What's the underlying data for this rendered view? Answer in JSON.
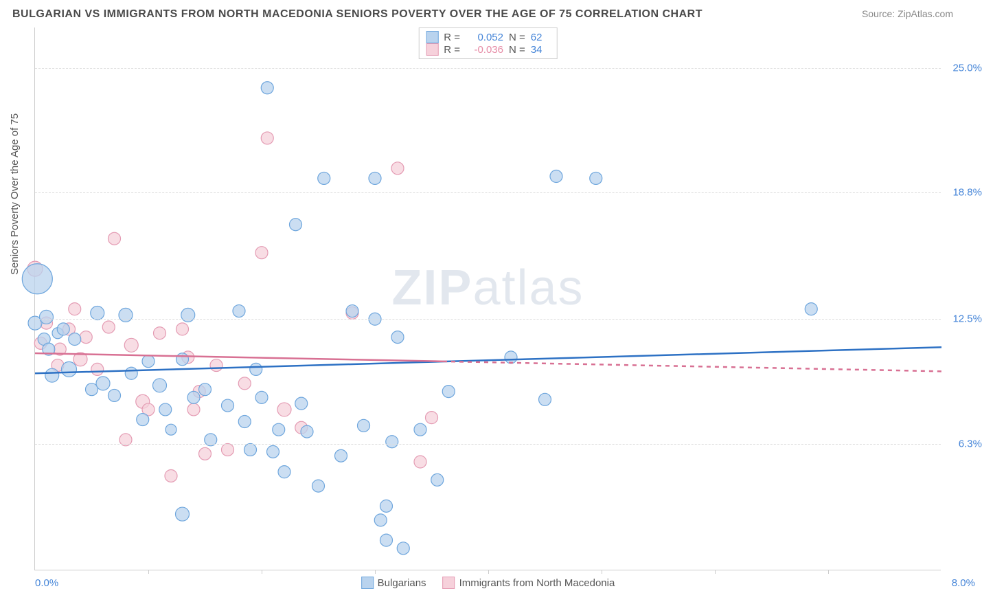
{
  "header": {
    "title": "BULGARIAN VS IMMIGRANTS FROM NORTH MACEDONIA SENIORS POVERTY OVER THE AGE OF 75 CORRELATION CHART",
    "source": "Source: ZipAtlas.com"
  },
  "axes": {
    "y_label": "Seniors Poverty Over the Age of 75",
    "x_min": 0.0,
    "x_max": 8.0,
    "y_min": 0.0,
    "y_max": 27.0,
    "x_left_label": "0.0%",
    "x_right_label": "8.0%",
    "y_ticks": [
      {
        "value": 6.3,
        "label": "6.3%"
      },
      {
        "value": 12.5,
        "label": "12.5%"
      },
      {
        "value": 18.8,
        "label": "18.8%"
      },
      {
        "value": 25.0,
        "label": "25.0%"
      }
    ],
    "x_tick_positions": [
      1.0,
      2.0,
      3.0,
      4.0,
      5.0,
      6.0,
      7.0
    ]
  },
  "series": {
    "blue": {
      "label": "Bulgarians",
      "r": "0.052",
      "r_label": "R =",
      "n": "62",
      "n_label": "N =",
      "fill": "#b9d3ee",
      "stroke": "#6ea6dd",
      "line_color": "#2d71c4",
      "trend": {
        "y_start": 9.8,
        "y_end": 11.1,
        "dashed": false
      },
      "points": [
        {
          "x": 0.0,
          "y": 12.3,
          "r": 10
        },
        {
          "x": 0.02,
          "y": 14.5,
          "r": 22
        },
        {
          "x": 0.08,
          "y": 11.5,
          "r": 9
        },
        {
          "x": 0.1,
          "y": 12.6,
          "r": 10
        },
        {
          "x": 0.12,
          "y": 11.0,
          "r": 9
        },
        {
          "x": 0.15,
          "y": 9.7,
          "r": 10
        },
        {
          "x": 0.2,
          "y": 11.8,
          "r": 8
        },
        {
          "x": 0.25,
          "y": 12.0,
          "r": 9
        },
        {
          "x": 0.3,
          "y": 10.0,
          "r": 11
        },
        {
          "x": 0.35,
          "y": 11.5,
          "r": 9
        },
        {
          "x": 0.5,
          "y": 9.0,
          "r": 9
        },
        {
          "x": 0.55,
          "y": 12.8,
          "r": 10
        },
        {
          "x": 0.6,
          "y": 9.3,
          "r": 10
        },
        {
          "x": 0.7,
          "y": 8.7,
          "r": 9
        },
        {
          "x": 0.8,
          "y": 12.7,
          "r": 10
        },
        {
          "x": 0.85,
          "y": 9.8,
          "r": 9
        },
        {
          "x": 0.95,
          "y": 7.5,
          "r": 9
        },
        {
          "x": 1.0,
          "y": 10.4,
          "r": 9
        },
        {
          "x": 1.1,
          "y": 9.2,
          "r": 10
        },
        {
          "x": 1.15,
          "y": 8.0,
          "r": 9
        },
        {
          "x": 1.2,
          "y": 7.0,
          "r": 8
        },
        {
          "x": 1.3,
          "y": 2.8,
          "r": 10
        },
        {
          "x": 1.3,
          "y": 10.5,
          "r": 9
        },
        {
          "x": 1.35,
          "y": 12.7,
          "r": 10
        },
        {
          "x": 1.4,
          "y": 8.6,
          "r": 9
        },
        {
          "x": 1.5,
          "y": 9.0,
          "r": 9
        },
        {
          "x": 1.55,
          "y": 6.5,
          "r": 9
        },
        {
          "x": 1.7,
          "y": 8.2,
          "r": 9
        },
        {
          "x": 1.8,
          "y": 12.9,
          "r": 9
        },
        {
          "x": 1.85,
          "y": 7.4,
          "r": 9
        },
        {
          "x": 1.9,
          "y": 6.0,
          "r": 9
        },
        {
          "x": 1.95,
          "y": 10.0,
          "r": 9
        },
        {
          "x": 2.0,
          "y": 8.6,
          "r": 9
        },
        {
          "x": 2.05,
          "y": 24.0,
          "r": 9
        },
        {
          "x": 2.1,
          "y": 5.9,
          "r": 9
        },
        {
          "x": 2.15,
          "y": 7.0,
          "r": 9
        },
        {
          "x": 2.2,
          "y": 4.9,
          "r": 9
        },
        {
          "x": 2.3,
          "y": 17.2,
          "r": 9
        },
        {
          "x": 2.35,
          "y": 8.3,
          "r": 9
        },
        {
          "x": 2.4,
          "y": 6.9,
          "r": 9
        },
        {
          "x": 2.5,
          "y": 4.2,
          "r": 9
        },
        {
          "x": 2.55,
          "y": 19.5,
          "r": 9
        },
        {
          "x": 2.7,
          "y": 5.7,
          "r": 9
        },
        {
          "x": 2.8,
          "y": 12.9,
          "r": 9
        },
        {
          "x": 2.9,
          "y": 7.2,
          "r": 9
        },
        {
          "x": 3.0,
          "y": 19.5,
          "r": 9
        },
        {
          "x": 3.0,
          "y": 12.5,
          "r": 9
        },
        {
          "x": 3.05,
          "y": 2.5,
          "r": 9
        },
        {
          "x": 3.1,
          "y": 3.2,
          "r": 9
        },
        {
          "x": 3.1,
          "y": 1.5,
          "r": 9
        },
        {
          "x": 3.15,
          "y": 6.4,
          "r": 9
        },
        {
          "x": 3.2,
          "y": 11.6,
          "r": 9
        },
        {
          "x": 3.25,
          "y": 1.1,
          "r": 9
        },
        {
          "x": 3.4,
          "y": 7.0,
          "r": 9
        },
        {
          "x": 3.55,
          "y": 4.5,
          "r": 9
        },
        {
          "x": 3.65,
          "y": 8.9,
          "r": 9
        },
        {
          "x": 4.2,
          "y": 10.6,
          "r": 9
        },
        {
          "x": 4.5,
          "y": 8.5,
          "r": 9
        },
        {
          "x": 4.6,
          "y": 19.6,
          "r": 9
        },
        {
          "x": 4.95,
          "y": 19.5,
          "r": 9
        },
        {
          "x": 6.85,
          "y": 13.0,
          "r": 9
        }
      ]
    },
    "pink": {
      "label": "Immigrants from North Macedonia",
      "r": "-0.036",
      "r_label": "R =",
      "n": "34",
      "n_label": "N =",
      "fill": "#f6d1db",
      "stroke": "#e49bb3",
      "line_color": "#d87093",
      "trend": {
        "y_start": 10.8,
        "y_end": 9.9,
        "dashed_from": 3.6
      },
      "points": [
        {
          "x": 0.0,
          "y": 15.0,
          "r": 11
        },
        {
          "x": 0.05,
          "y": 11.3,
          "r": 9
        },
        {
          "x": 0.1,
          "y": 12.3,
          "r": 9
        },
        {
          "x": 0.2,
          "y": 10.2,
          "r": 9
        },
        {
          "x": 0.22,
          "y": 11.0,
          "r": 9
        },
        {
          "x": 0.3,
          "y": 12.0,
          "r": 9
        },
        {
          "x": 0.35,
          "y": 13.0,
          "r": 9
        },
        {
          "x": 0.4,
          "y": 10.5,
          "r": 10
        },
        {
          "x": 0.45,
          "y": 11.6,
          "r": 9
        },
        {
          "x": 0.55,
          "y": 10.0,
          "r": 9
        },
        {
          "x": 0.65,
          "y": 12.1,
          "r": 9
        },
        {
          "x": 0.7,
          "y": 16.5,
          "r": 9
        },
        {
          "x": 0.8,
          "y": 6.5,
          "r": 9
        },
        {
          "x": 0.85,
          "y": 11.2,
          "r": 10
        },
        {
          "x": 0.95,
          "y": 8.4,
          "r": 10
        },
        {
          "x": 1.0,
          "y": 8.0,
          "r": 9
        },
        {
          "x": 1.1,
          "y": 11.8,
          "r": 9
        },
        {
          "x": 1.2,
          "y": 4.7,
          "r": 9
        },
        {
          "x": 1.3,
          "y": 12.0,
          "r": 9
        },
        {
          "x": 1.35,
          "y": 10.6,
          "r": 9
        },
        {
          "x": 1.4,
          "y": 8.0,
          "r": 9
        },
        {
          "x": 1.45,
          "y": 8.9,
          "r": 9
        },
        {
          "x": 1.5,
          "y": 5.8,
          "r": 9
        },
        {
          "x": 1.6,
          "y": 10.2,
          "r": 9
        },
        {
          "x": 1.7,
          "y": 6.0,
          "r": 9
        },
        {
          "x": 1.85,
          "y": 9.3,
          "r": 9
        },
        {
          "x": 2.0,
          "y": 15.8,
          "r": 9
        },
        {
          "x": 2.05,
          "y": 21.5,
          "r": 9
        },
        {
          "x": 2.2,
          "y": 8.0,
          "r": 10
        },
        {
          "x": 2.35,
          "y": 7.1,
          "r": 9
        },
        {
          "x": 2.8,
          "y": 12.8,
          "r": 9
        },
        {
          "x": 3.2,
          "y": 20.0,
          "r": 9
        },
        {
          "x": 3.4,
          "y": 5.4,
          "r": 9
        },
        {
          "x": 3.5,
          "y": 7.6,
          "r": 9
        }
      ]
    }
  },
  "watermark": {
    "zip": "ZIP",
    "atlas": "atlas"
  }
}
